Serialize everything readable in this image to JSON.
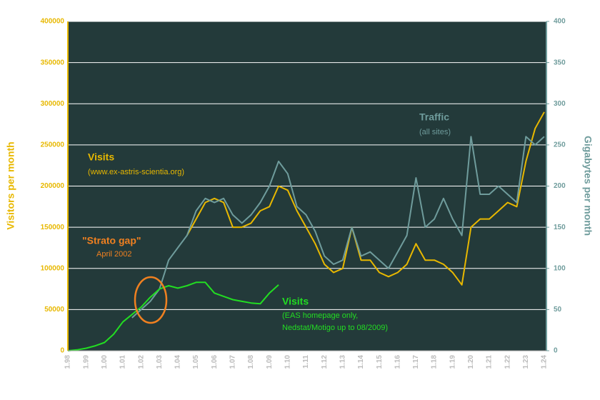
{
  "chart_data": {
    "type": "line",
    "ylabel": "Visitors per month",
    "y2label": "Gigabytes per month",
    "annotations": {
      "visits_www": "Visits",
      "visits_www_sub": "(www.ex-astris-scientia.org)",
      "traffic": "Traffic",
      "traffic_sub": "(all sites)",
      "visits_eas": "Visits",
      "visits_eas_sub1": "(EAS homepage only,",
      "visits_eas_sub2": "Nedstat/Motigo up to 08/2009)",
      "strato": "\"Strato gap\"",
      "strato_sub": "April 2002"
    },
    "categories": [
      "1.98",
      null,
      "1.99",
      null,
      "1.00",
      null,
      "1.01",
      null,
      "1.02",
      null,
      "1.03",
      null,
      "1.04",
      null,
      "1.05",
      null,
      "1.06",
      null,
      "1.07",
      null,
      "1.08",
      null,
      "1.09",
      null,
      "1.10",
      null,
      "1.11",
      null,
      "1.12",
      null,
      "1.13",
      null,
      "1.14",
      null,
      "1.15",
      null,
      "1.16",
      null,
      "1.17",
      null,
      "1.18",
      null,
      "1.19",
      null,
      "1.20",
      null,
      "1.21",
      null,
      "1.22",
      null,
      "1.23",
      null,
      "1.24"
    ],
    "series": [
      {
        "name": "Visits (www.ex-astris-scientia.org)",
        "color": "#e8b800",
        "axis": "y",
        "values": [
          null,
          null,
          null,
          null,
          null,
          null,
          null,
          null,
          null,
          null,
          null,
          null,
          null,
          140000,
          160000,
          180000,
          185000,
          180000,
          150000,
          150000,
          155000,
          170000,
          175000,
          200000,
          195000,
          170000,
          150000,
          130000,
          105000,
          95000,
          100000,
          150000,
          110000,
          110000,
          95000,
          90000,
          95000,
          105000,
          130000,
          110000,
          110000,
          105000,
          95000,
          80000,
          150000,
          160000,
          160000,
          170000,
          180000,
          175000,
          230000,
          270000,
          290000
        ]
      },
      {
        "name": "Traffic (all sites)",
        "color": "#6f9c9c",
        "axis": "y2",
        "values": [
          null,
          null,
          null,
          null,
          null,
          null,
          null,
          40,
          50,
          60,
          75,
          110,
          125,
          140,
          170,
          185,
          180,
          185,
          165,
          155,
          165,
          180,
          200,
          230,
          215,
          175,
          165,
          145,
          115,
          105,
          110,
          150,
          115,
          120,
          110,
          100,
          120,
          140,
          210,
          150,
          160,
          185,
          160,
          140,
          260,
          190,
          190,
          200,
          190,
          180,
          260,
          250,
          260
        ]
      },
      {
        "name": "Visits (EAS homepage only)",
        "color": "#22dd22",
        "axis": "y",
        "values": [
          0,
          1000,
          3000,
          6000,
          10000,
          20000,
          35000,
          44000,
          53000,
          65000,
          75000,
          79000,
          76000,
          79000,
          83000,
          83000,
          70000,
          66000,
          62000,
          60000,
          58000,
          57000,
          70000,
          80000,
          null,
          null,
          null,
          null,
          null,
          null,
          null,
          null,
          null,
          null,
          null,
          null,
          null,
          null,
          null,
          null,
          null,
          null,
          null,
          null,
          null,
          null,
          null,
          null,
          null,
          null,
          null,
          null,
          null
        ]
      }
    ],
    "ylim": [
      0,
      400000
    ],
    "yticks": [
      0,
      50000,
      100000,
      150000,
      200000,
      250000,
      300000,
      350000,
      400000
    ],
    "y2lim": [
      0,
      400
    ],
    "y2ticks": [
      0,
      50,
      100,
      150,
      200,
      250,
      300,
      350,
      400
    ],
    "grid": true,
    "background": "#233a3a"
  }
}
